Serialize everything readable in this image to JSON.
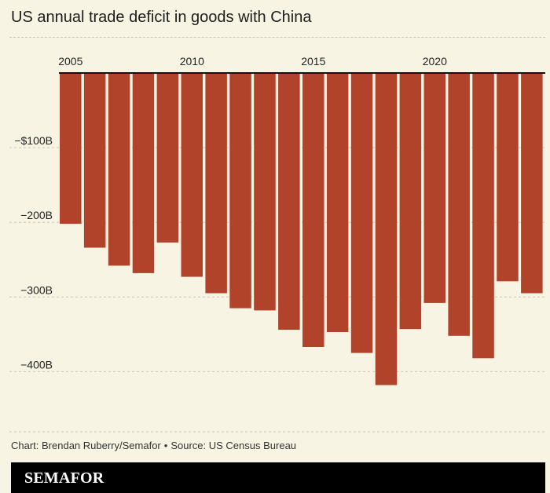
{
  "title": "US annual trade deficit in goods with China",
  "chart_data": {
    "type": "bar",
    "title": "US annual trade deficit in goods with China",
    "categories": [
      "2005",
      "2006",
      "2007",
      "2008",
      "2009",
      "2010",
      "2011",
      "2012",
      "2013",
      "2014",
      "2015",
      "2016",
      "2017",
      "2018",
      "2019",
      "2020",
      "2021",
      "2022",
      "2023",
      "2024"
    ],
    "values": [
      -202,
      -234,
      -258,
      -268,
      -227,
      -273,
      -295,
      -315,
      -318,
      -344,
      -367,
      -347,
      -375,
      -418,
      -343,
      -308,
      -352,
      -382,
      -279,
      -295
    ],
    "unit": "billion USD",
    "x_tick_labels": [
      {
        "year": "2005",
        "label": "2005"
      },
      {
        "year": "2010",
        "label": "2010"
      },
      {
        "year": "2015",
        "label": "2015"
      },
      {
        "year": "2020",
        "label": "2020"
      }
    ],
    "y_ticks": [
      {
        "value": -100,
        "label": "−$100B"
      },
      {
        "value": -200,
        "label": "−200B"
      },
      {
        "value": -300,
        "label": "−300B"
      },
      {
        "value": -400,
        "label": "−400B"
      }
    ],
    "ylim": [
      -480,
      0
    ],
    "xlabel": "",
    "ylabel": "",
    "bar_color": "#b1432a",
    "grid": true
  },
  "source": {
    "credit": "Chart: Brendan Ruberry/Semafor",
    "separator": "•",
    "source_text": "Source: US Census Bureau"
  },
  "footer": {
    "brand": "SEMAFOR"
  }
}
